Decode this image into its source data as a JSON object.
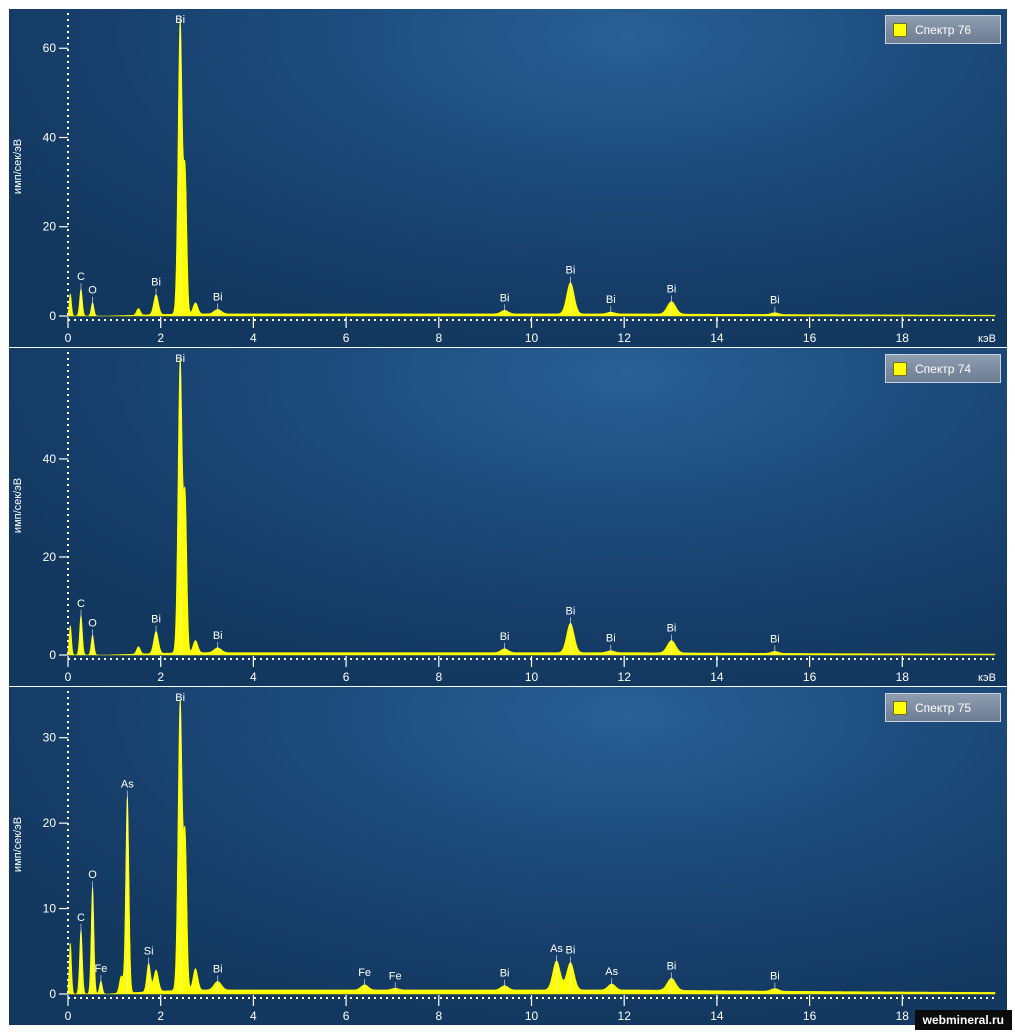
{
  "watermark": "webmineral.ru",
  "colors": {
    "spectrum": "#ffff00",
    "axis": "#ffffff",
    "background": "#1d4d7e"
  },
  "chart_data": [
    {
      "type": "area",
      "legend": "Спектр 76",
      "xlabel": "кэВ",
      "ylabel": "имп/сек/эВ",
      "xlim": [
        0,
        20
      ],
      "ylim": [
        0,
        67
      ],
      "xticks": [
        0,
        2,
        4,
        6,
        8,
        10,
        12,
        14,
        16,
        18
      ],
      "yticks": [
        0,
        20,
        40,
        60
      ],
      "peaks": [
        {
          "x": 0.05,
          "y": 5,
          "w": 0.025,
          "label": ""
        },
        {
          "x": 0.28,
          "y": 6,
          "w": 0.03,
          "label": "C"
        },
        {
          "x": 0.53,
          "y": 3,
          "w": 0.03,
          "label": "O"
        },
        {
          "x": 1.52,
          "y": 1.5,
          "w": 0.04,
          "label": ""
        },
        {
          "x": 1.9,
          "y": 4.5,
          "w": 0.05,
          "label": "Bi"
        },
        {
          "x": 2.42,
          "y": 66,
          "w": 0.045,
          "label": "Bi"
        },
        {
          "x": 2.53,
          "y": 30,
          "w": 0.035,
          "label": ""
        },
        {
          "x": 2.75,
          "y": 2.5,
          "w": 0.05,
          "label": ""
        },
        {
          "x": 3.23,
          "y": 1,
          "w": 0.08,
          "label": "Bi"
        },
        {
          "x": 9.42,
          "y": 0.8,
          "w": 0.08,
          "label": "Bi"
        },
        {
          "x": 10.84,
          "y": 7,
          "w": 0.08,
          "label": "Bi"
        },
        {
          "x": 11.71,
          "y": 0.4,
          "w": 0.08,
          "label": "Bi"
        },
        {
          "x": 13.02,
          "y": 2.8,
          "w": 0.09,
          "label": "Bi"
        },
        {
          "x": 15.25,
          "y": 0.4,
          "w": 0.08,
          "label": "Bi"
        }
      ]
    },
    {
      "type": "area",
      "legend": "Спектр 74",
      "xlabel": "кэВ",
      "ylabel": "имп/сек/эВ",
      "xlim": [
        0,
        20
      ],
      "ylim": [
        0,
        61
      ],
      "xticks": [
        0,
        2,
        4,
        6,
        8,
        10,
        12,
        14,
        16,
        18
      ],
      "yticks": [
        0,
        20,
        40
      ],
      "peaks": [
        {
          "x": 0.05,
          "y": 6,
          "w": 0.025,
          "label": ""
        },
        {
          "x": 0.28,
          "y": 8,
          "w": 0.03,
          "label": "C"
        },
        {
          "x": 0.53,
          "y": 4,
          "w": 0.03,
          "label": "O"
        },
        {
          "x": 1.52,
          "y": 1.5,
          "w": 0.04,
          "label": ""
        },
        {
          "x": 1.9,
          "y": 4.5,
          "w": 0.05,
          "label": "Bi"
        },
        {
          "x": 2.42,
          "y": 60,
          "w": 0.045,
          "label": "Bi"
        },
        {
          "x": 2.53,
          "y": 30,
          "w": 0.035,
          "label": ""
        },
        {
          "x": 2.75,
          "y": 2.5,
          "w": 0.05,
          "label": ""
        },
        {
          "x": 3.23,
          "y": 1,
          "w": 0.08,
          "label": "Bi"
        },
        {
          "x": 9.42,
          "y": 0.8,
          "w": 0.08,
          "label": "Bi"
        },
        {
          "x": 10.84,
          "y": 6,
          "w": 0.08,
          "label": "Bi"
        },
        {
          "x": 11.71,
          "y": 0.4,
          "w": 0.08,
          "label": "Bi"
        },
        {
          "x": 13.02,
          "y": 2.5,
          "w": 0.09,
          "label": "Bi"
        },
        {
          "x": 15.25,
          "y": 0.4,
          "w": 0.08,
          "label": "Bi"
        }
      ]
    },
    {
      "type": "area",
      "legend": "Спектр 75",
      "xlabel": "кэВ",
      "ylabel": "имп/сек/эВ",
      "xlim": [
        0,
        20
      ],
      "ylim": [
        0,
        35
      ],
      "xticks": [
        0,
        2,
        4,
        6,
        8,
        10,
        12,
        14,
        16,
        18
      ],
      "yticks": [
        0,
        10,
        20,
        30
      ],
      "peaks": [
        {
          "x": 0.05,
          "y": 6,
          "w": 0.025,
          "label": ""
        },
        {
          "x": 0.28,
          "y": 7.5,
          "w": 0.03,
          "label": "C"
        },
        {
          "x": 0.53,
          "y": 12.5,
          "w": 0.03,
          "label": "O"
        },
        {
          "x": 0.71,
          "y": 1.5,
          "w": 0.03,
          "label": "Fe"
        },
        {
          "x": 1.15,
          "y": 2,
          "w": 0.04,
          "label": ""
        },
        {
          "x": 1.28,
          "y": 23,
          "w": 0.035,
          "label": "As"
        },
        {
          "x": 1.74,
          "y": 3.3,
          "w": 0.04,
          "label": "Si"
        },
        {
          "x": 1.9,
          "y": 2.5,
          "w": 0.05,
          "label": ""
        },
        {
          "x": 2.42,
          "y": 34,
          "w": 0.045,
          "label": "Bi"
        },
        {
          "x": 2.53,
          "y": 17,
          "w": 0.035,
          "label": ""
        },
        {
          "x": 2.75,
          "y": 2.5,
          "w": 0.05,
          "label": ""
        },
        {
          "x": 3.23,
          "y": 1,
          "w": 0.08,
          "label": "Bi"
        },
        {
          "x": 6.4,
          "y": 0.6,
          "w": 0.08,
          "label": "Fe"
        },
        {
          "x": 7.06,
          "y": 0.2,
          "w": 0.08,
          "label": "Fe"
        },
        {
          "x": 9.42,
          "y": 0.5,
          "w": 0.08,
          "label": "Bi"
        },
        {
          "x": 10.54,
          "y": 3.4,
          "w": 0.08,
          "label": "As"
        },
        {
          "x": 10.84,
          "y": 3.2,
          "w": 0.08,
          "label": "Bi"
        },
        {
          "x": 11.73,
          "y": 0.7,
          "w": 0.08,
          "label": "As"
        },
        {
          "x": 13.02,
          "y": 1.4,
          "w": 0.09,
          "label": "Bi"
        },
        {
          "x": 15.25,
          "y": 0.3,
          "w": 0.08,
          "label": "Bi"
        }
      ]
    }
  ]
}
